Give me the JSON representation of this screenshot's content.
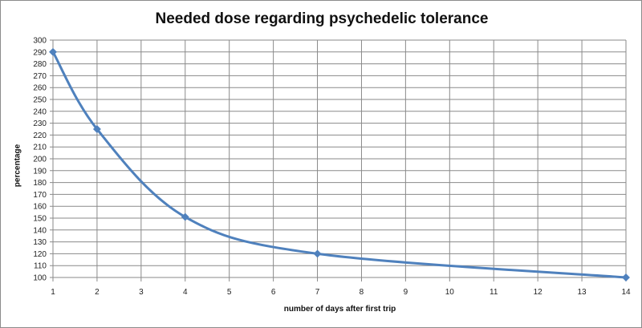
{
  "chart_data": {
    "type": "line",
    "title": "Needed dose regarding psychedelic tolerance",
    "xlabel": "number of days after first trip",
    "ylabel": "percentage",
    "x_ticks": [
      1,
      2,
      3,
      4,
      5,
      6,
      7,
      8,
      9,
      10,
      11,
      12,
      13,
      14
    ],
    "y_ticks": [
      100,
      110,
      120,
      130,
      140,
      150,
      160,
      170,
      180,
      190,
      200,
      210,
      220,
      230,
      240,
      250,
      260,
      270,
      280,
      290,
      300
    ],
    "ylim": [
      100,
      300
    ],
    "xlim": [
      1,
      14
    ],
    "grid": true,
    "legend": null,
    "series": [
      {
        "name": "needed dose",
        "color": "#4f81bd",
        "smooth": true,
        "x": [
          1,
          2,
          4,
          7,
          14
        ],
        "values": [
          290,
          225,
          151,
          120,
          100
        ]
      }
    ]
  }
}
